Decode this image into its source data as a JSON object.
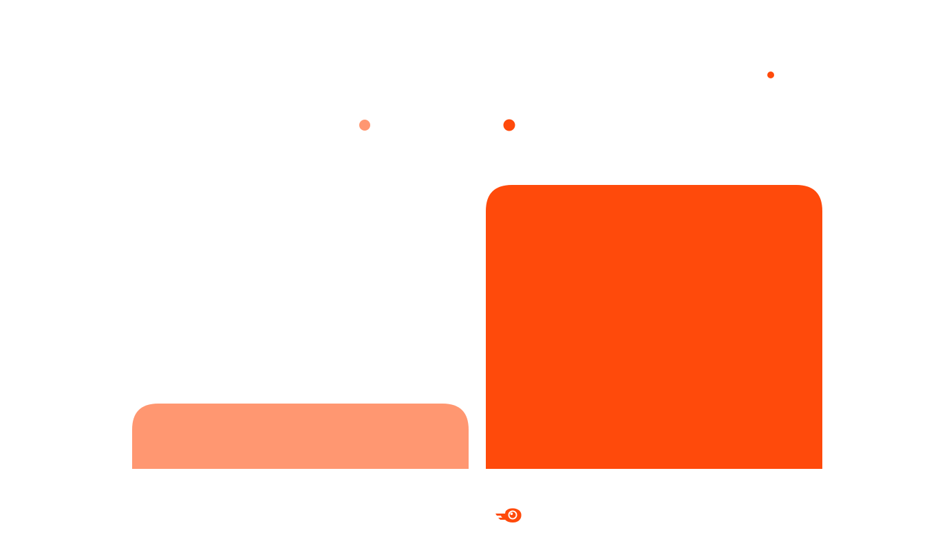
{
  "chart_data": {
    "type": "bar",
    "categories": [
      "",
      ""
    ],
    "series": [
      {
        "values": [
          0.23,
          1.0
        ]
      }
    ],
    "colors": [
      "#ff9771",
      "#ff4a0b"
    ],
    "ylim": [
      0,
      1.0
    ],
    "grid": false,
    "legend": "top-center"
  },
  "decorations": {
    "accent_color": "#ff4a0b"
  },
  "brand": {
    "logo_icon": "semrush-fireball-icon",
    "logo_color": "#ff4a0b"
  }
}
